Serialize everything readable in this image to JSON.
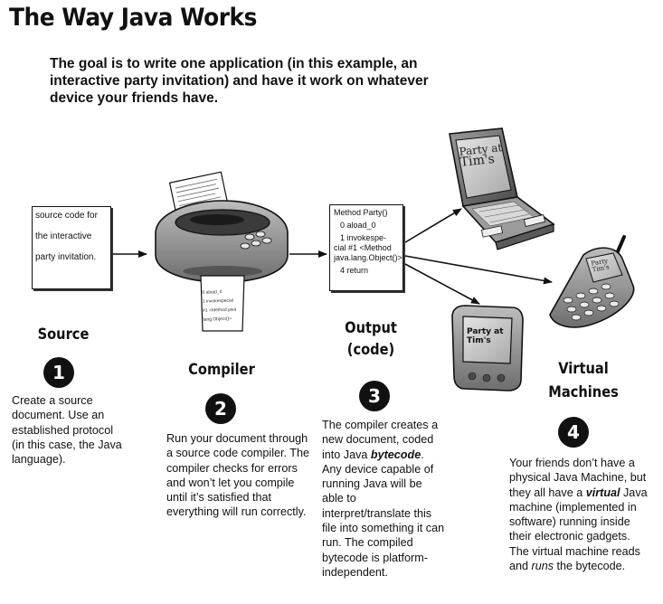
{
  "title": "The Way Java Works",
  "goal": "The goal is to write one application (in this example, an interactive party invitation) and have it work on whatever device your friends have.",
  "source_doc_lines": [
    "source code for",
    "the interactive",
    "party invitation."
  ],
  "compiler_paper_lines": [
    "0 aload_0",
    "1 invokespecial",
    "#1 <Method java",
    "lang.Object()>"
  ],
  "bytecode_doc": {
    "l1": "Method Party()",
    "l2": "0 aload_0",
    "l3a": "1 invokespe-",
    "l3b": "cial #1 <Method",
    "l3c": "java.lang.Object()>",
    "l4": "4 return"
  },
  "laptop_screen_text": [
    "Party at",
    "Tim's"
  ],
  "phone_screen_text": [
    "Party",
    "Tim's"
  ],
  "pda_screen_text": [
    "Party at",
    "Tim's"
  ],
  "steps": {
    "source": {
      "heading": "Source",
      "number": "1",
      "text": "Create a source document. Use an established protocol (in this case, the Java language)."
    },
    "compiler": {
      "heading": "Compiler",
      "number": "2",
      "text": "Run your document through a source code compiler. The compiler checks for errors and won’t let you compile until it’s satisfied that everything will run correctly."
    },
    "output": {
      "heading_line1": "Output",
      "heading_line2": "(code)",
      "number": "3",
      "text_a": "The compiler creates a new document, coded into Java ",
      "text_b": "bytecode",
      "text_c": ". Any device capable of running Java will be able to interpret/translate this file into something it can run. The compiled bytecode is platform-independent."
    },
    "vm": {
      "heading_line1": "Virtual",
      "heading_line2": "Machines",
      "number": "4",
      "text_a": "Your friends don’t have a physical Java Machine, but they all have a ",
      "text_b": "virtual",
      "text_c": " Java machine (implemented in software) running inside their electronic gadgets. The virtual machine reads and ",
      "text_d": "runs",
      "text_e": " the bytecode."
    }
  }
}
